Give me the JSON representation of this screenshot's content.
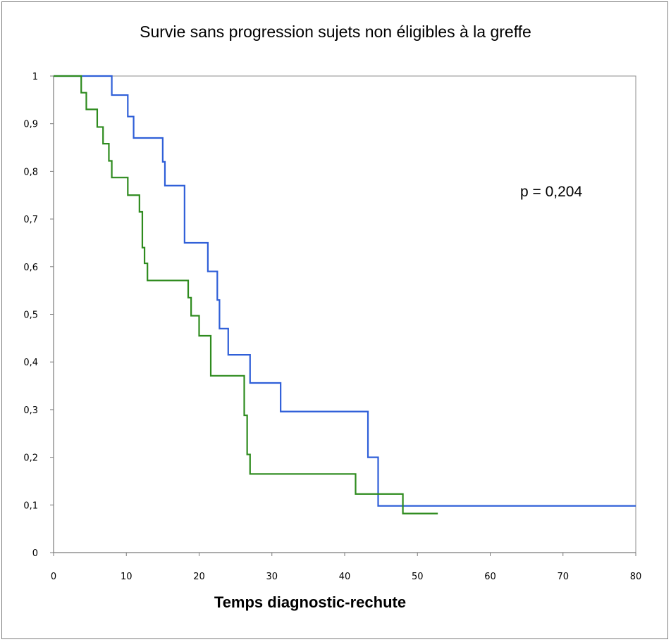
{
  "chart_data": {
    "type": "line",
    "title": "Survie sans progression  sujets non éligibles à la greffe",
    "xlabel": "Temps diagnostic-rechute",
    "ylabel": "",
    "xlim": [
      0,
      80
    ],
    "ylim": [
      0,
      1
    ],
    "x_ticks": [
      "0",
      "10",
      "20",
      "30",
      "40",
      "50",
      "60",
      "70",
      "80"
    ],
    "y_ticks": [
      "0",
      "0,1",
      "0,2",
      "0,3",
      "0,4",
      "0,5",
      "0,6",
      "0,7",
      "0,8",
      "0,9",
      "1"
    ],
    "grid": false,
    "legend": "none",
    "annotation": "p = 0,204",
    "series": [
      {
        "color": "#2f5fd8",
        "step": true,
        "x": [
          0,
          8,
          10.2,
          11,
          15,
          15.3,
          18,
          21.2,
          22.5,
          22.8,
          24,
          27,
          31.2,
          43.2,
          44.6,
          80
        ],
        "y": [
          1,
          0.96,
          0.915,
          0.87,
          0.82,
          0.77,
          0.65,
          0.59,
          0.53,
          0.47,
          0.415,
          0.356,
          0.296,
          0.2,
          0.098,
          0.098
        ]
      },
      {
        "color": "#2e8b1e",
        "step": true,
        "x": [
          0,
          3.8,
          4.5,
          6,
          6.8,
          7.6,
          8,
          10.2,
          11.8,
          12.2,
          12.5,
          12.9,
          18.5,
          18.9,
          20,
          21.6,
          26.2,
          26.6,
          27,
          41.5,
          48,
          52.8
        ],
        "y": [
          1,
          0.965,
          0.93,
          0.893,
          0.858,
          0.822,
          0.787,
          0.75,
          0.715,
          0.64,
          0.607,
          0.571,
          0.535,
          0.497,
          0.455,
          0.371,
          0.288,
          0.206,
          0.165,
          0.123,
          0.082,
          0.082
        ]
      }
    ]
  }
}
